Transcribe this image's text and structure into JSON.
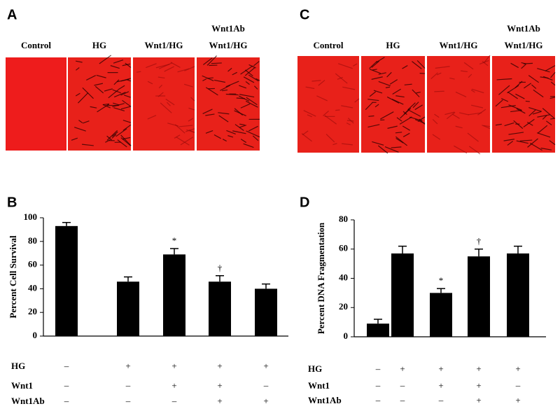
{
  "image_panels": [
    {
      "letter": "A",
      "labels": [
        [
          "Control"
        ],
        [
          "HG"
        ],
        [
          "Wnt1/HG"
        ],
        [
          "Wnt1Ab",
          "Wnt1/HG"
        ]
      ]
    },
    {
      "letter": "C",
      "labels": [
        [
          "Control"
        ],
        [
          "HG"
        ],
        [
          "Wnt1/HG"
        ],
        [
          "Wnt1Ab",
          "Wnt1/HG"
        ]
      ]
    }
  ],
  "chart_data": [
    {
      "type": "bar",
      "panel": "B",
      "ylabel": "Percent Cell Survival",
      "color": "#000000",
      "values": [
        93,
        46,
        69,
        46,
        40
      ],
      "errors": [
        3,
        4,
        5,
        5,
        4
      ],
      "markers": [
        null,
        null,
        "*",
        "†",
        null
      ],
      "ylim": [
        0,
        100
      ],
      "yticks": [
        0,
        20,
        40,
        60,
        80,
        100
      ],
      "treatments": [
        {
          "name": "HG",
          "signs": [
            "–",
            "+",
            "+",
            "+",
            "+"
          ]
        },
        {
          "name": "Wnt1",
          "signs": [
            "–",
            "–",
            "+",
            "+",
            "–"
          ]
        },
        {
          "name": "Wnt1Ab",
          "signs": [
            "–",
            "–",
            "–",
            "+",
            "+"
          ]
        }
      ]
    },
    {
      "type": "bar",
      "panel": "D",
      "ylabel": "Percent DNA Fragmentation",
      "color": "#000000",
      "values": [
        9,
        57,
        30,
        55,
        57
      ],
      "errors": [
        3,
        5,
        3,
        5,
        5
      ],
      "markers": [
        null,
        null,
        "*",
        "†",
        null
      ],
      "ylim": [
        0,
        80
      ],
      "yticks": [
        0,
        20,
        40,
        60,
        80
      ],
      "treatments": [
        {
          "name": "HG",
          "signs": [
            "–",
            "+",
            "+",
            "+",
            "+"
          ]
        },
        {
          "name": "Wnt1",
          "signs": [
            "–",
            "–",
            "+",
            "+",
            "–"
          ]
        },
        {
          "name": "Wnt1Ab",
          "signs": [
            "–",
            "–",
            "–",
            "+",
            "+"
          ]
        }
      ]
    }
  ]
}
